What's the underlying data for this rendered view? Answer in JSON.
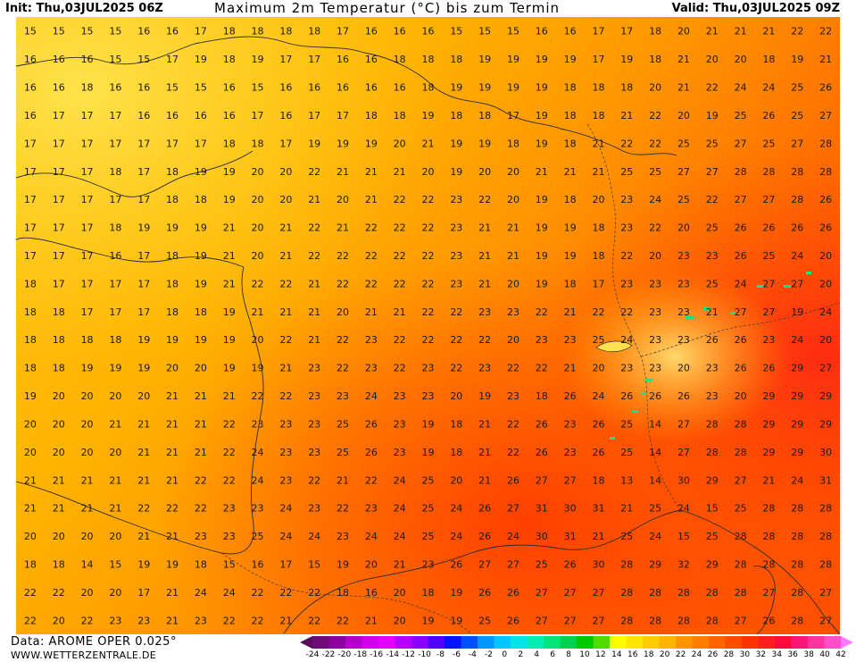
{
  "header": {
    "init": "Init: Thu,03JUL2025 06Z",
    "title": "Maximum 2m Temperatur (°C) bis zum Termin",
    "valid": "Valid: Thu,03JUL2025 09Z"
  },
  "footer": {
    "source": "Data: AROME OPER 0.025°",
    "website": "WWW.WETTERZENTRALE.DE"
  },
  "colorbar": {
    "stops": [
      {
        "value": -24,
        "color": "#5a0a5a"
      },
      {
        "value": -22,
        "color": "#6e0a78"
      },
      {
        "value": -20,
        "color": "#8c00a0"
      },
      {
        "value": -18,
        "color": "#b400c8"
      },
      {
        "value": -16,
        "color": "#d200e6"
      },
      {
        "value": -14,
        "color": "#e600ff"
      },
      {
        "value": -12,
        "color": "#b400ff"
      },
      {
        "value": -10,
        "color": "#8c00ff"
      },
      {
        "value": -8,
        "color": "#5000ff"
      },
      {
        "value": -6,
        "color": "#0014ff"
      },
      {
        "value": -4,
        "color": "#0050ff"
      },
      {
        "value": -2,
        "color": "#0096ff"
      },
      {
        "value": 0,
        "color": "#00c8ff"
      },
      {
        "value": 2,
        "color": "#00e6e6"
      },
      {
        "value": 4,
        "color": "#00f0b4"
      },
      {
        "value": 6,
        "color": "#00e678"
      },
      {
        "value": 8,
        "color": "#00d250"
      },
      {
        "value": 10,
        "color": "#00c800"
      },
      {
        "value": 12,
        "color": "#50dc00"
      },
      {
        "value": 14,
        "color": "#ffff00"
      },
      {
        "value": 16,
        "color": "#ffe600"
      },
      {
        "value": 18,
        "color": "#ffcd00"
      },
      {
        "value": 20,
        "color": "#ffb400"
      },
      {
        "value": 22,
        "color": "#ff9600"
      },
      {
        "value": 24,
        "color": "#ff7d00"
      },
      {
        "value": 26,
        "color": "#ff6400"
      },
      {
        "value": 28,
        "color": "#ff4b00"
      },
      {
        "value": 30,
        "color": "#ff3200"
      },
      {
        "value": 32,
        "color": "#ff1e1e"
      },
      {
        "value": 34,
        "color": "#ff0a3c"
      },
      {
        "value": 36,
        "color": "#ff1478"
      },
      {
        "value": 38,
        "color": "#ff32a0"
      },
      {
        "value": 40,
        "color": "#ff50c8"
      },
      {
        "value": 42,
        "color": "#ff78ff"
      }
    ],
    "tick_labels": [
      "-24",
      "-22",
      "-20",
      "-18",
      "-16",
      "-14",
      "-12",
      "-10",
      "-8",
      "-6",
      "-4",
      "-2",
      "0",
      "2",
      "4",
      "6",
      "8",
      "10",
      "12",
      "14",
      "16",
      "18",
      "20",
      "22",
      "24",
      "26",
      "28",
      "30",
      "32",
      "34",
      "36",
      "38",
      "40",
      "42"
    ]
  },
  "map_values": [
    [
      "15",
      "15",
      "15",
      "15",
      "16",
      "16",
      "17",
      "18",
      "18",
      "18",
      "18",
      "17",
      "16",
      "16",
      "16",
      "15",
      "15",
      "15",
      "16",
      "16",
      "17",
      "17",
      "18",
      "20",
      "21",
      "21",
      "21",
      "22",
      "22"
    ],
    [
      "16",
      "16",
      "16",
      "15",
      "15",
      "17",
      "19",
      "18",
      "19",
      "17",
      "17",
      "16",
      "16",
      "18",
      "18",
      "18",
      "19",
      "19",
      "19",
      "19",
      "17",
      "19",
      "18",
      "21",
      "20",
      "20",
      "18",
      "19",
      "21"
    ],
    [
      "16",
      "16",
      "18",
      "16",
      "16",
      "15",
      "15",
      "16",
      "15",
      "16",
      "16",
      "16",
      "16",
      "16",
      "18",
      "19",
      "19",
      "19",
      "19",
      "18",
      "18",
      "18",
      "20",
      "21",
      "22",
      "24",
      "24",
      "25",
      "26"
    ],
    [
      "16",
      "17",
      "17",
      "17",
      "16",
      "16",
      "16",
      "16",
      "17",
      "16",
      "17",
      "17",
      "18",
      "18",
      "19",
      "18",
      "18",
      "17",
      "19",
      "18",
      "18",
      "21",
      "22",
      "20",
      "19",
      "25",
      "26",
      "25",
      "27"
    ],
    [
      "17",
      "17",
      "17",
      "17",
      "17",
      "17",
      "17",
      "18",
      "18",
      "17",
      "19",
      "19",
      "19",
      "20",
      "21",
      "19",
      "19",
      "18",
      "19",
      "18",
      "21",
      "22",
      "22",
      "25",
      "25",
      "27",
      "25",
      "27",
      "28"
    ],
    [
      "17",
      "17",
      "17",
      "18",
      "17",
      "18",
      "19",
      "19",
      "20",
      "20",
      "22",
      "21",
      "21",
      "21",
      "20",
      "19",
      "20",
      "20",
      "21",
      "21",
      "21",
      "25",
      "25",
      "27",
      "27",
      "28",
      "28",
      "28",
      "28"
    ],
    [
      "17",
      "17",
      "17",
      "17",
      "17",
      "18",
      "18",
      "19",
      "20",
      "20",
      "21",
      "20",
      "21",
      "22",
      "22",
      "23",
      "22",
      "20",
      "19",
      "18",
      "20",
      "23",
      "24",
      "25",
      "22",
      "27",
      "27",
      "28",
      "26"
    ],
    [
      "17",
      "17",
      "17",
      "18",
      "19",
      "19",
      "19",
      "21",
      "20",
      "21",
      "22",
      "21",
      "22",
      "22",
      "22",
      "23",
      "21",
      "21",
      "19",
      "19",
      "18",
      "23",
      "22",
      "20",
      "25",
      "26",
      "26",
      "26",
      "26"
    ],
    [
      "17",
      "17",
      "17",
      "16",
      "17",
      "18",
      "19",
      "21",
      "20",
      "21",
      "22",
      "22",
      "22",
      "22",
      "22",
      "23",
      "21",
      "21",
      "19",
      "19",
      "18",
      "22",
      "20",
      "23",
      "23",
      "26",
      "25",
      "24",
      "20"
    ],
    [
      "18",
      "17",
      "17",
      "17",
      "17",
      "18",
      "19",
      "21",
      "22",
      "22",
      "21",
      "22",
      "22",
      "22",
      "22",
      "23",
      "21",
      "20",
      "19",
      "18",
      "17",
      "23",
      "23",
      "23",
      "25",
      "24",
      "27",
      "27",
      "20"
    ],
    [
      "18",
      "18",
      "17",
      "17",
      "17",
      "18",
      "18",
      "19",
      "21",
      "21",
      "21",
      "20",
      "21",
      "21",
      "22",
      "22",
      "23",
      "23",
      "22",
      "21",
      "22",
      "22",
      "23",
      "23",
      "21",
      "27",
      "27",
      "19",
      "24"
    ],
    [
      "18",
      "18",
      "18",
      "18",
      "19",
      "19",
      "19",
      "19",
      "20",
      "22",
      "21",
      "22",
      "23",
      "22",
      "22",
      "22",
      "22",
      "20",
      "23",
      "23",
      "25",
      "24",
      "23",
      "23",
      "26",
      "26",
      "23",
      "24",
      "20"
    ],
    [
      "18",
      "18",
      "19",
      "19",
      "19",
      "20",
      "20",
      "19",
      "19",
      "21",
      "23",
      "22",
      "23",
      "22",
      "23",
      "22",
      "23",
      "22",
      "22",
      "21",
      "20",
      "23",
      "23",
      "20",
      "23",
      "26",
      "26",
      "29",
      "27"
    ],
    [
      "19",
      "20",
      "20",
      "20",
      "20",
      "21",
      "21",
      "21",
      "22",
      "22",
      "23",
      "23",
      "24",
      "23",
      "23",
      "20",
      "19",
      "23",
      "18",
      "26",
      "24",
      "26",
      "26",
      "26",
      "23",
      "20",
      "29",
      "29",
      "29"
    ],
    [
      "20",
      "20",
      "20",
      "21",
      "21",
      "21",
      "21",
      "22",
      "23",
      "23",
      "23",
      "25",
      "26",
      "23",
      "19",
      "18",
      "21",
      "22",
      "26",
      "23",
      "26",
      "25",
      "14",
      "27",
      "28",
      "28",
      "29",
      "29",
      "29"
    ],
    [
      "20",
      "20",
      "20",
      "20",
      "21",
      "21",
      "21",
      "22",
      "24",
      "23",
      "23",
      "25",
      "26",
      "23",
      "19",
      "18",
      "21",
      "22",
      "26",
      "23",
      "26",
      "25",
      "14",
      "27",
      "28",
      "28",
      "29",
      "29",
      "30"
    ],
    [
      "21",
      "21",
      "21",
      "21",
      "21",
      "21",
      "22",
      "22",
      "24",
      "23",
      "22",
      "21",
      "22",
      "24",
      "25",
      "20",
      "21",
      "26",
      "27",
      "27",
      "18",
      "13",
      "14",
      "30",
      "29",
      "27",
      "21",
      "24",
      "31"
    ],
    [
      "21",
      "21",
      "21",
      "21",
      "22",
      "22",
      "22",
      "23",
      "23",
      "24",
      "23",
      "22",
      "23",
      "24",
      "25",
      "24",
      "26",
      "27",
      "31",
      "30",
      "31",
      "21",
      "25",
      "24",
      "15",
      "25",
      "28",
      "28",
      "28"
    ],
    [
      "20",
      "20",
      "20",
      "20",
      "21",
      "21",
      "23",
      "23",
      "25",
      "24",
      "24",
      "23",
      "24",
      "24",
      "25",
      "24",
      "26",
      "24",
      "30",
      "31",
      "21",
      "25",
      "24",
      "15",
      "25",
      "28",
      "28",
      "28",
      "28"
    ],
    [
      "18",
      "18",
      "14",
      "15",
      "19",
      "19",
      "18",
      "15",
      "16",
      "17",
      "15",
      "19",
      "20",
      "21",
      "23",
      "26",
      "27",
      "27",
      "25",
      "26",
      "30",
      "28",
      "29",
      "32",
      "29",
      "28",
      "28",
      "28",
      "28"
    ],
    [
      "22",
      "22",
      "20",
      "20",
      "17",
      "21",
      "24",
      "24",
      "22",
      "22",
      "22",
      "18",
      "16",
      "20",
      "18",
      "19",
      "26",
      "26",
      "27",
      "27",
      "27",
      "28",
      "28",
      "28",
      "28",
      "28",
      "27",
      "28",
      "27"
    ],
    [
      "22",
      "20",
      "22",
      "23",
      "23",
      "21",
      "23",
      "22",
      "22",
      "21",
      "22",
      "22",
      "21",
      "20",
      "19",
      "19",
      "25",
      "26",
      "27",
      "27",
      "27",
      "28",
      "28",
      "28",
      "28",
      "27",
      "26",
      "28",
      "27"
    ]
  ],
  "legend_colors": {
    "light": "#ffd21e",
    "mid": "#ff9600",
    "hot": "#ff4b00",
    "hotter": "#ff2814",
    "sea_dark": "#e64b00"
  }
}
